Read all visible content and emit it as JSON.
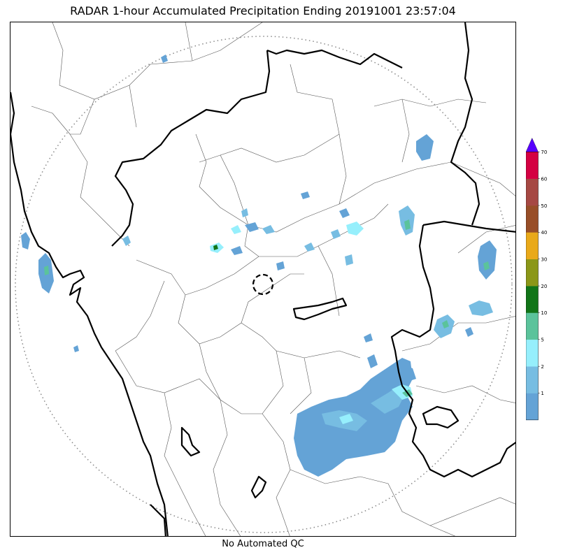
{
  "title": "RADAR 1-hour Accumulated Precipitation Ending 20191001 23:57:04",
  "footer_note": "No Automated QC",
  "colorbar": {
    "bins": [
      {
        "label": "",
        "color": "#64a3d6"
      },
      {
        "label": "1",
        "color": "#77bde2"
      },
      {
        "label": "2",
        "color": "#96effc"
      },
      {
        "label": "5",
        "color": "#5bc39b"
      },
      {
        "label": "10",
        "color": "#117518"
      },
      {
        "label": "20",
        "color": "#8b9718"
      },
      {
        "label": "30",
        "color": "#e9a919"
      },
      {
        "label": "40",
        "color": "#984e27"
      },
      {
        "label": "50",
        "color": "#a64843"
      },
      {
        "label": "60",
        "color": "#d40042"
      }
    ],
    "top_label": "70",
    "extend_color": "#5700ff"
  },
  "colors": {
    "range_ring": "#888888",
    "state_border": "#000000",
    "district_border": "#555555",
    "radar_marker": "#000000"
  }
}
